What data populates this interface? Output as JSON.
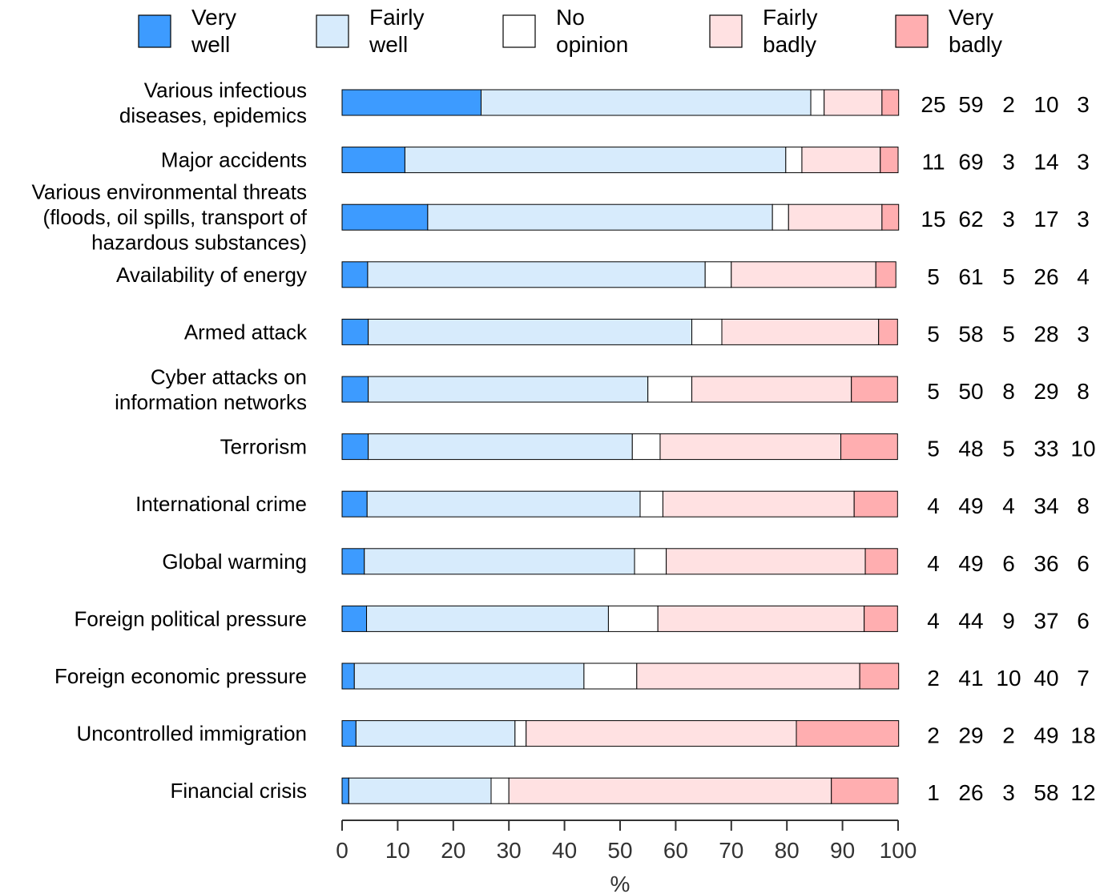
{
  "chart_data": {
    "type": "bar",
    "orientation": "horizontal",
    "stacked": true,
    "title": "",
    "xlabel": "%",
    "ylabel": "",
    "xlim": [
      0,
      100
    ],
    "xticks": [
      0,
      10,
      20,
      30,
      40,
      50,
      60,
      70,
      80,
      90,
      100
    ],
    "grid": false,
    "legend_position": "top",
    "categories": [
      [
        "Various infectious",
        "diseases, epidemics"
      ],
      [
        "Major accidents"
      ],
      [
        "Various environmental threats",
        "(floods, oil spills, transport of",
        "hazardous substances)"
      ],
      [
        "Availability of energy"
      ],
      [
        "Armed attack"
      ],
      [
        "Cyber attacks on",
        "information networks"
      ],
      [
        "Terrorism"
      ],
      [
        "International crime"
      ],
      [
        "Global warming"
      ],
      [
        "Foreign political pressure"
      ],
      [
        "Foreign economic pressure"
      ],
      [
        "Uncontrolled immigration"
      ],
      [
        "Financial crisis"
      ]
    ],
    "series": [
      {
        "name": [
          "Very",
          "well"
        ],
        "color": "#3d9bff",
        "values": [
          25,
          11,
          15,
          5,
          5,
          5,
          5,
          4,
          4,
          4,
          2,
          2,
          1
        ]
      },
      {
        "name": [
          "Fairly",
          "well"
        ],
        "color": "#d7ebfc",
        "values": [
          59,
          69,
          62,
          61,
          58,
          50,
          48,
          49,
          49,
          44,
          41,
          29,
          26
        ]
      },
      {
        "name": [
          "No",
          "opinion"
        ],
        "color": "#ffffff",
        "values": [
          2,
          3,
          3,
          5,
          5,
          8,
          5,
          4,
          6,
          9,
          10,
          2,
          3
        ]
      },
      {
        "name": [
          "Fairly",
          "badly"
        ],
        "color": "#ffe1e2",
        "values": [
          10,
          14,
          17,
          26,
          28,
          29,
          33,
          34,
          36,
          37,
          40,
          49,
          58
        ]
      },
      {
        "name": [
          "Very",
          "badly"
        ],
        "color": "#ffaeb0",
        "values": [
          3,
          3,
          3,
          4,
          3,
          8,
          10,
          8,
          6,
          6,
          7,
          18,
          12
        ]
      }
    ],
    "exact_stacks": [
      [
        25.0,
        59.3,
        2.4,
        10.4,
        3.0
      ],
      [
        11.3,
        68.5,
        2.9,
        14.1,
        3.2
      ],
      [
        15.4,
        62.0,
        2.9,
        16.8,
        3.0
      ],
      [
        4.6,
        60.7,
        4.7,
        26.0,
        3.6
      ],
      [
        4.7,
        58.2,
        5.4,
        28.2,
        3.4
      ],
      [
        4.7,
        50.3,
        7.9,
        28.7,
        8.3
      ],
      [
        4.7,
        47.5,
        5.0,
        32.5,
        10.2
      ],
      [
        4.5,
        49.1,
        4.1,
        34.4,
        7.8
      ],
      [
        4.0,
        48.6,
        5.7,
        35.8,
        5.8
      ],
      [
        4.4,
        43.5,
        8.9,
        37.1,
        6.0
      ],
      [
        2.2,
        41.3,
        9.5,
        40.1,
        7.0
      ],
      [
        2.5,
        28.6,
        2.0,
        48.6,
        18.4
      ],
      [
        1.2,
        25.6,
        3.2,
        58.0,
        12.0
      ]
    ]
  }
}
